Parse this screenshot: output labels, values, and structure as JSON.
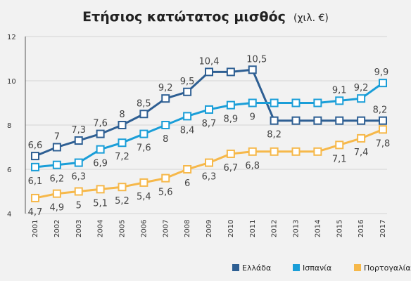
{
  "title": "Ετήσιος κατώτατος μισθός",
  "title_unit": "(χιλ. €)",
  "chart_data": {
    "type": "line",
    "title": "Ετήσιος κατώτατος μισθός (χιλ. €)",
    "xlabel": "",
    "ylabel": "",
    "categories": [
      "2001",
      "2002",
      "2003",
      "2004",
      "2005",
      "2006",
      "2007",
      "2008",
      "2009",
      "2010",
      "2011",
      "2012",
      "2013",
      "2014",
      "2015",
      "2016",
      "2017"
    ],
    "ylim": [
      4,
      12
    ],
    "yticks": [
      4,
      6,
      8,
      10,
      12
    ],
    "grid": "horizontal",
    "legend": "bottom-right",
    "series": [
      {
        "name": "Ελλάδα",
        "color": "#2e5f93",
        "values": [
          6.6,
          7,
          7.3,
          7.6,
          8,
          8.5,
          9.2,
          9.5,
          10.4,
          10.4,
          10.5,
          8.2,
          8.2,
          8.2,
          8.2,
          8.2,
          8.2
        ],
        "labels": [
          "6,6",
          "7",
          "7,3",
          "7,6",
          "8",
          "8,5",
          "9,2",
          "9,5",
          "10,4",
          "",
          "10,5",
          "8,2",
          "",
          "",
          "",
          "",
          "8,2"
        ]
      },
      {
        "name": "Ισπανία",
        "color": "#1a9ed8",
        "values": [
          6.1,
          6.2,
          6.3,
          6.9,
          7.2,
          7.6,
          8,
          8.4,
          8.7,
          8.9,
          9,
          9,
          9,
          9,
          9.1,
          9.2,
          9.9
        ],
        "labels": [
          "6,1",
          "6,2",
          "6,3",
          "6,9",
          "7,2",
          "7,6",
          "8",
          "8,4",
          "8,7",
          "8,9",
          "9",
          "",
          "",
          "",
          "9,1",
          "9,2",
          "9,9"
        ]
      },
      {
        "name": "Πορτογαλία",
        "color": "#f6b84a",
        "values": [
          4.7,
          4.9,
          5,
          5.1,
          5.2,
          5.4,
          5.6,
          6,
          6.3,
          6.7,
          6.8,
          6.8,
          6.8,
          6.8,
          7.1,
          7.4,
          7.8
        ],
        "labels": [
          "4,7",
          "4,9",
          "5",
          "5,1",
          "5,2",
          "5,4",
          "5,6",
          "6",
          "6,3",
          "6,7",
          "6,8",
          "",
          "",
          "",
          "7,1",
          "7,4",
          "7,8"
        ]
      }
    ]
  }
}
